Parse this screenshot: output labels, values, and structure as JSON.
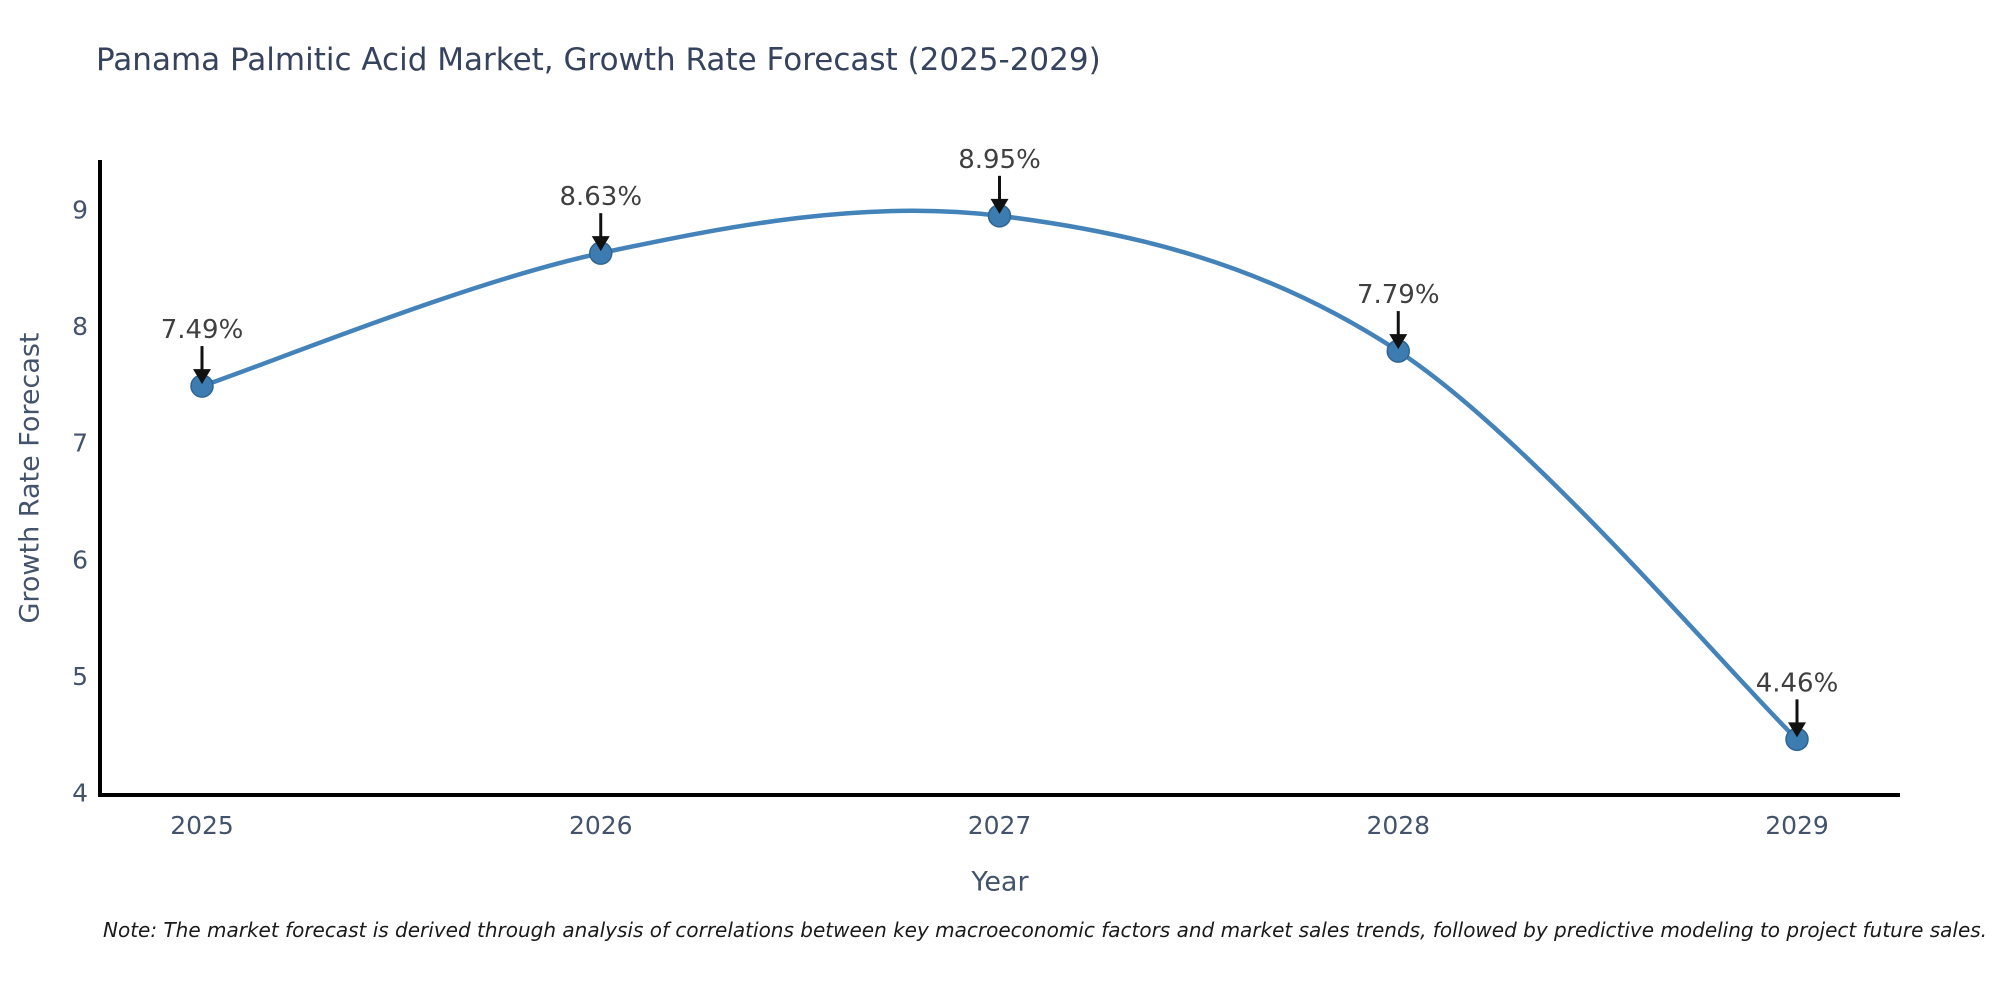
{
  "title": "Panama Palmitic Acid Market, Growth Rate Forecast (2025-2029)",
  "note": "Note: The market forecast is derived through analysis of correlations between key macroeconomic factors and market sales trends, followed by predictive modeling to project future sales.",
  "chart_data": {
    "type": "line",
    "title": "Panama Palmitic Acid Market, Growth Rate Forecast (2025-2029)",
    "xlabel": "Year",
    "ylabel": "Growth Rate Forecast",
    "x": [
      2025,
      2026,
      2027,
      2028,
      2029
    ],
    "series": [
      {
        "name": "Growth Rate Forecast",
        "values": [
          7.49,
          8.63,
          8.95,
          7.79,
          4.46
        ]
      }
    ],
    "point_labels": [
      "7.49%",
      "8.63%",
      "8.95%",
      "7.79%",
      "4.46%"
    ],
    "xticks": [
      "2025",
      "2026",
      "2027",
      "2028",
      "2029"
    ],
    "yticks": [
      4,
      5,
      6,
      7,
      8,
      9
    ],
    "ylim": [
      4,
      9.45
    ],
    "xlim": [
      2024.75,
      2029.26
    ],
    "grid": false,
    "legend": "none",
    "line_color": "#4383b9",
    "marker_color": "#3c7cb0",
    "marker_edge_color": "#2f6593",
    "annotation_text_color": "#3f3f3f",
    "arrow_color": "#111111",
    "axis_color": "#000000",
    "tick_label_color": "#42536b",
    "title_color": "#36435e"
  }
}
